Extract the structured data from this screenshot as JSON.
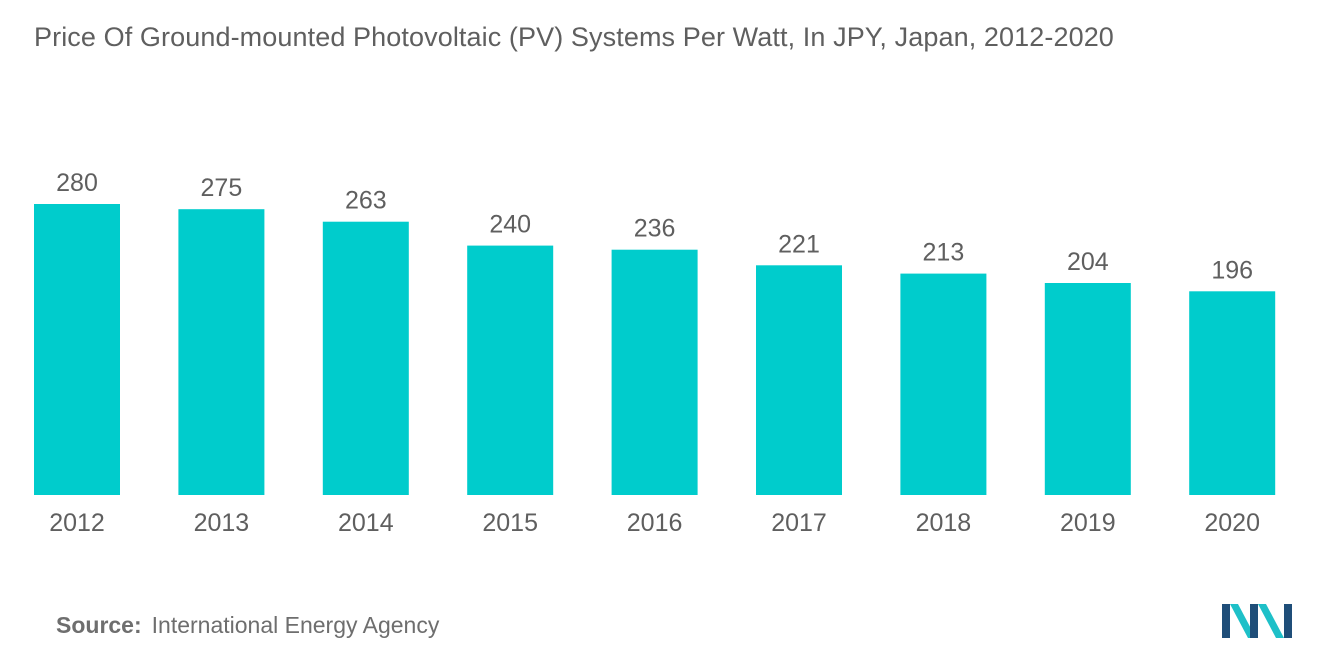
{
  "title": "Price Of Ground-mounted Photovoltaic (PV) Systems Per Watt, In JPY, Japan, 2012-2020",
  "source": {
    "label": "Source:",
    "text": "International Energy Agency"
  },
  "logo": {
    "icon": "mordor-intelligence-logo-icon",
    "colors": [
      "#1f4e79",
      "#1ec0c8"
    ]
  },
  "colors": {
    "bar": "#00cccc",
    "text": "#5f5f5f"
  },
  "chart_data": {
    "type": "bar",
    "title": "Price Of Ground-mounted Photovoltaic (PV) Systems Per Watt, In JPY, Japan, 2012-2020",
    "categories": [
      "2012",
      "2013",
      "2014",
      "2015",
      "2016",
      "2017",
      "2018",
      "2019",
      "2020"
    ],
    "values": [
      280,
      275,
      263,
      240,
      236,
      221,
      213,
      204,
      196
    ],
    "xlabel": "",
    "ylabel": "",
    "ylim": [
      0,
      280
    ],
    "grid": false,
    "legend": "none",
    "data_labels": true
  }
}
